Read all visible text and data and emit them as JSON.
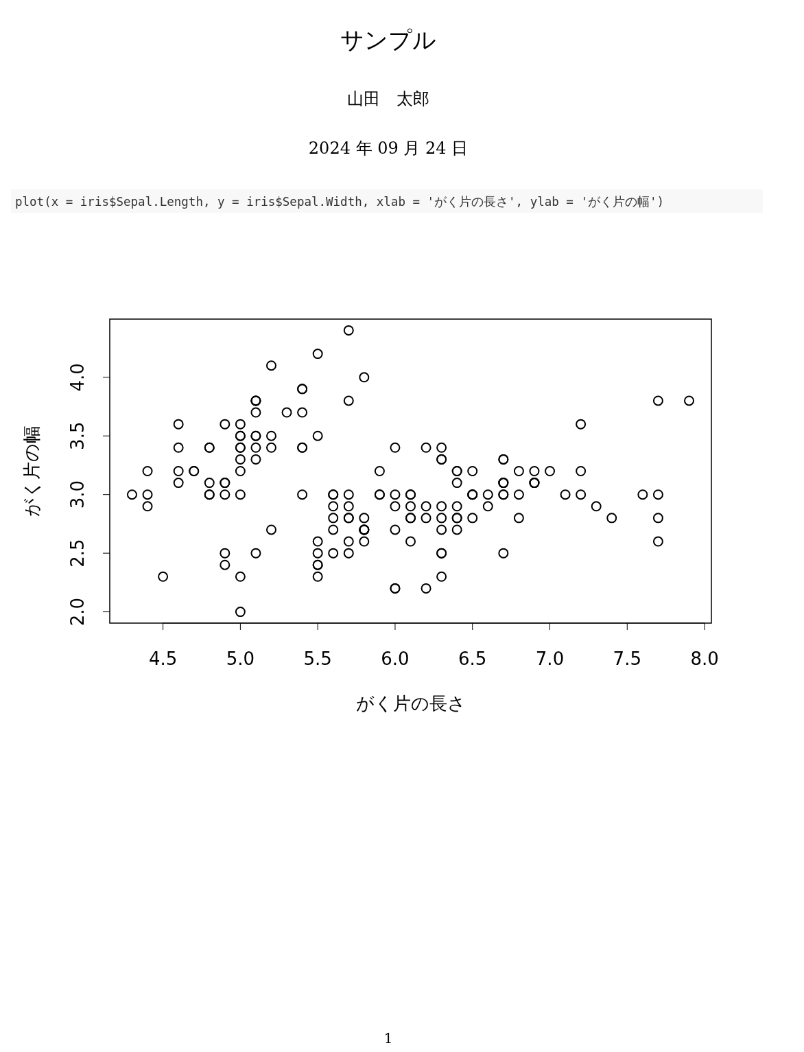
{
  "chart_data": {
    "type": "scatter",
    "title": "サンプル",
    "subtitle": "山田　太郎",
    "annotations": [
      "2024 年 09 月 24 日",
      "plot(x = iris$Sepal.Length, y = iris$Sepal.Width, xlab = 'がく片の長さ', ylab = 'がく片の幅')",
      "1"
    ],
    "xlabel": "がく片の長さ",
    "ylabel": "がく片の幅",
    "x": [
      5.1,
      4.9,
      4.7,
      4.6,
      5.0,
      5.4,
      4.6,
      5.0,
      4.4,
      4.9,
      5.4,
      4.8,
      4.8,
      4.3,
      5.8,
      5.7,
      5.4,
      5.1,
      5.7,
      5.1,
      5.4,
      5.1,
      4.6,
      5.1,
      4.8,
      5.0,
      5.0,
      5.2,
      5.2,
      4.7,
      4.8,
      5.4,
      5.2,
      5.5,
      4.9,
      5.0,
      5.5,
      4.9,
      4.4,
      5.1,
      5.0,
      4.5,
      4.4,
      5.0,
      5.1,
      4.8,
      5.1,
      4.6,
      5.3,
      5.0,
      7.0,
      6.4,
      6.9,
      5.5,
      6.5,
      5.7,
      6.3,
      4.9,
      6.6,
      5.2,
      5.0,
      5.9,
      6.0,
      6.1,
      5.6,
      6.7,
      5.6,
      5.8,
      6.2,
      5.6,
      5.9,
      6.1,
      6.3,
      6.1,
      6.4,
      6.6,
      6.8,
      6.7,
      6.0,
      5.7,
      5.5,
      5.5,
      5.8,
      6.0,
      5.4,
      6.0,
      6.7,
      6.3,
      5.6,
      5.5,
      5.5,
      6.1,
      5.8,
      5.0,
      5.6,
      5.7,
      5.7,
      6.2,
      5.1,
      5.7,
      6.3,
      5.8,
      7.1,
      6.3,
      6.5,
      7.6,
      4.9,
      7.3,
      6.7,
      7.2,
      6.5,
      6.4,
      6.8,
      5.7,
      5.8,
      6.4,
      6.5,
      7.7,
      7.7,
      6.0,
      6.9,
      5.6,
      7.7,
      6.3,
      6.7,
      7.2,
      6.2,
      6.1,
      6.4,
      7.2,
      7.4,
      7.9,
      6.4,
      6.3,
      6.1,
      7.7,
      6.3,
      6.4,
      6.0,
      6.9,
      6.7,
      6.9,
      5.8,
      6.8,
      6.7,
      6.7,
      6.3,
      6.5,
      6.2,
      5.9
    ],
    "series": [
      {
        "color": "#000000",
        "values": [
          3.5,
          3.0,
          3.2,
          3.1,
          3.6,
          3.9,
          3.4,
          3.4,
          2.9,
          3.1,
          3.7,
          3.4,
          3.0,
          3.0,
          4.0,
          4.4,
          3.9,
          3.5,
          3.8,
          3.8,
          3.4,
          3.7,
          3.6,
          3.3,
          3.4,
          3.0,
          3.4,
          3.5,
          3.4,
          3.2,
          3.1,
          3.4,
          4.1,
          4.2,
          3.1,
          3.2,
          3.5,
          3.6,
          3.0,
          3.4,
          3.5,
          2.3,
          3.2,
          3.5,
          3.8,
          3.0,
          3.8,
          3.2,
          3.7,
          3.3,
          3.2,
          3.2,
          3.1,
          2.3,
          2.8,
          2.8,
          3.3,
          2.4,
          2.9,
          2.7,
          2.0,
          3.0,
          2.2,
          2.9,
          2.9,
          3.1,
          3.0,
          2.7,
          2.2,
          2.5,
          3.2,
          2.8,
          2.5,
          2.8,
          2.9,
          3.0,
          2.8,
          3.0,
          2.9,
          2.6,
          2.4,
          2.4,
          2.7,
          2.7,
          3.0,
          3.4,
          3.1,
          2.3,
          3.0,
          2.5,
          2.6,
          3.0,
          2.6,
          2.3,
          2.7,
          3.0,
          2.9,
          2.9,
          2.5,
          2.8,
          3.3,
          2.7,
          3.0,
          2.9,
          3.0,
          3.0,
          2.5,
          2.9,
          2.5,
          3.6,
          3.2,
          2.7,
          3.0,
          2.5,
          2.8,
          3.2,
          3.0,
          3.8,
          2.6,
          2.2,
          3.2,
          2.8,
          2.8,
          2.7,
          3.3,
          3.2,
          2.8,
          3.0,
          2.8,
          3.0,
          2.8,
          3.8,
          2.8,
          2.8,
          2.6,
          3.0,
          3.4,
          3.1,
          3.0,
          3.1,
          3.1,
          3.1,
          2.7,
          3.2,
          3.3,
          3.0,
          2.5,
          3.0,
          3.4,
          3.0
        ]
      }
    ],
    "xlim": [
      4.156,
      8.044
    ],
    "ylim": [
      1.904,
      4.496
    ],
    "xticks": [
      {
        "value": 4.5,
        "label": "4.5"
      },
      {
        "value": 5,
        "label": "5.0"
      },
      {
        "value": 5.5,
        "label": "5.5"
      },
      {
        "value": 6,
        "label": "6.0"
      },
      {
        "value": 6.5,
        "label": "6.5"
      },
      {
        "value": 7,
        "label": "7.0"
      },
      {
        "value": 7.5,
        "label": "7.5"
      },
      {
        "value": 8,
        "label": "8.0"
      }
    ],
    "yticks": [
      {
        "value": 2,
        "label": "2.0"
      },
      {
        "value": 2.5,
        "label": "2.5"
      },
      {
        "value": 3,
        "label": "3.0"
      },
      {
        "value": 3.5,
        "label": "3.5"
      },
      {
        "value": 4,
        "label": "4.0"
      }
    ],
    "marker": "circle",
    "grid": false
  }
}
